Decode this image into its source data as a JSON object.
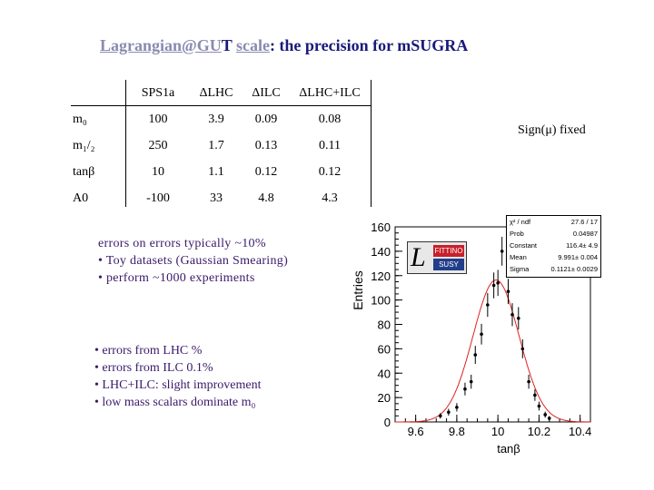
{
  "title": {
    "part1": "Lagrangian@GU",
    "part2": "T",
    "part3": " ",
    "part4": "scale",
    "part5": ": the precision for mSUGRA"
  },
  "table": {
    "headers": [
      "",
      "SPS1a",
      "ΔLHC",
      "ΔILC",
      "ΔLHC+ILC"
    ],
    "rows": [
      [
        "m₀",
        "100",
        "3.9",
        "0.09",
        "0.08"
      ],
      [
        "m₁/₂",
        "250",
        "1.7",
        "0.13",
        "0.11"
      ],
      [
        "tanβ",
        "10",
        "1.1",
        "0.12",
        "0.12"
      ],
      [
        "A0",
        "-100",
        "33",
        "4.8",
        "4.3"
      ]
    ]
  },
  "sign_note": "Sign(μ) fixed",
  "notes_top": [
    "errors on errors typically ~10%",
    "• Toy  datasets (Gaussian Smearing)",
    "• perform ~1000 experiments"
  ],
  "notes_bottom": [
    "• errors from LHC %",
    "• errors from ILC 0.1%",
    "• LHC+ILC: slight improvement",
    "• low mass scalars dominate m₀"
  ],
  "logo": {
    "letter": "L",
    "top": "FITTINO",
    "bottom": "SUSY"
  },
  "stats": [
    [
      "χ² / ndf",
      "27.6 / 17"
    ],
    [
      "Prob",
      "0.04987"
    ],
    [
      "Constant",
      "116.4± 4.9"
    ],
    [
      "Mean",
      "9.991± 0.004"
    ],
    [
      "Sigma",
      "0.1121± 0.0029"
    ]
  ],
  "chart_data": {
    "type": "scatter",
    "xlabel": "tanβ",
    "ylabel": "Entries",
    "xlim": [
      9.5,
      10.45
    ],
    "ylim": [
      0,
      160
    ],
    "x_ticks": [
      "9.6",
      "9.8",
      "10",
      "10.2",
      "10.4"
    ],
    "y_ticks": [
      "0",
      "20",
      "40",
      "60",
      "80",
      "100",
      "120",
      "140",
      "160"
    ],
    "points": [
      {
        "x": 9.72,
        "y": 5
      },
      {
        "x": 9.76,
        "y": 8
      },
      {
        "x": 9.8,
        "y": 12
      },
      {
        "x": 9.84,
        "y": 27
      },
      {
        "x": 9.87,
        "y": 33
      },
      {
        "x": 9.89,
        "y": 55
      },
      {
        "x": 9.92,
        "y": 72
      },
      {
        "x": 9.95,
        "y": 96
      },
      {
        "x": 9.98,
        "y": 112
      },
      {
        "x": 10.0,
        "y": 114
      },
      {
        "x": 10.02,
        "y": 140
      },
      {
        "x": 10.05,
        "y": 107
      },
      {
        "x": 10.07,
        "y": 88
      },
      {
        "x": 10.1,
        "y": 85
      },
      {
        "x": 10.12,
        "y": 60
      },
      {
        "x": 10.15,
        "y": 33
      },
      {
        "x": 10.18,
        "y": 22
      },
      {
        "x": 10.2,
        "y": 13
      },
      {
        "x": 10.23,
        "y": 6
      },
      {
        "x": 10.25,
        "y": 3
      }
    ],
    "fit": {
      "constant": 116.4,
      "mean": 9.991,
      "sigma": 0.1121,
      "color": "#e02020"
    }
  }
}
